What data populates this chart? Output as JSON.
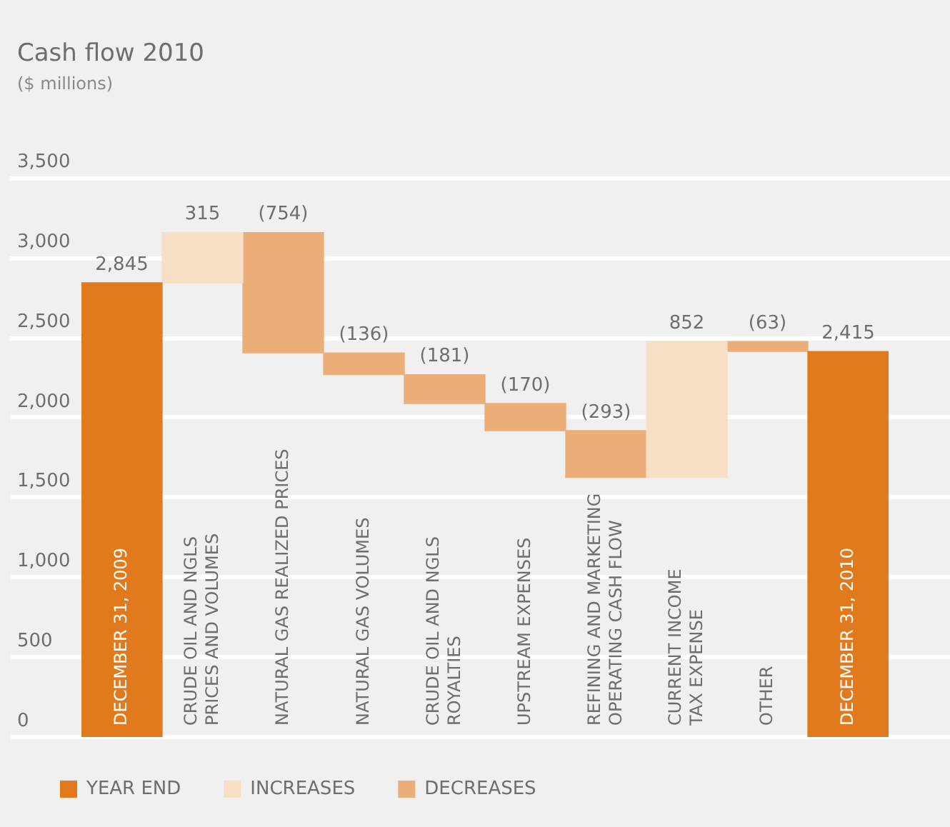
{
  "chart_data": {
    "type": "bar",
    "title": "Cash flow 2010",
    "subtitle": "($ millions)",
    "categories": [
      "DECEMBER 31, 2009",
      "CRUDE OIL AND NGLS\nPRICES AND VOLUMES",
      "NATURAL GAS REALIZED PRICES",
      "NATURAL GAS VOLUMES",
      "CRUDE OIL AND NGLS\nROYALTIES",
      "UPSTREAM EXPENSES",
      "REFINING AND MARKETING\nOPERATING CASH FLOW",
      "CURRENT INCOME\nTAX EXPENSE",
      "OTHER",
      "DECEMBER 31, 2010"
    ],
    "series": [
      {
        "name": "YEAR END",
        "color": "#e07a1c",
        "values": [
          2845,
          null,
          null,
          null,
          null,
          null,
          null,
          null,
          null,
          2415
        ],
        "base": [
          0,
          null,
          null,
          null,
          null,
          null,
          null,
          null,
          null,
          0
        ],
        "value_labels": [
          "2,845",
          null,
          null,
          null,
          null,
          null,
          null,
          null,
          null,
          "2,415"
        ]
      },
      {
        "name": "INCREASES",
        "color": "#f7dfc5",
        "values": [
          null,
          315,
          null,
          null,
          null,
          null,
          null,
          852,
          null,
          null
        ],
        "base": [
          null,
          2845,
          null,
          null,
          null,
          null,
          null,
          1626,
          null,
          null
        ],
        "value_labels": [
          null,
          "315",
          null,
          null,
          null,
          null,
          null,
          "852",
          null,
          null
        ]
      },
      {
        "name": "DECREASES",
        "color": "#ecae78",
        "values": [
          null,
          null,
          -754,
          -136,
          -181,
          -170,
          -293,
          null,
          -63,
          null
        ],
        "base": [
          null,
          null,
          3160,
          2406,
          2270,
          2089,
          1919,
          null,
          2478,
          null
        ],
        "value_labels": [
          null,
          null,
          "(754)",
          "(136)",
          "(181)",
          "(170)",
          "(293)",
          null,
          "(63)",
          null
        ]
      }
    ],
    "ylim": [
      0,
      3500
    ],
    "yticks": [
      0,
      500,
      {
        "value": 1000,
        "label": "1,000"
      },
      {
        "value": 1500,
        "label": "1,500"
      },
      {
        "value": 2000,
        "label": "2,000"
      },
      {
        "value": 2500,
        "label": "2,500"
      },
      {
        "value": 3000,
        "label": "3,000"
      },
      {
        "value": 3500,
        "label": "3,500"
      }
    ],
    "grid": "y",
    "legend": "bottom"
  }
}
